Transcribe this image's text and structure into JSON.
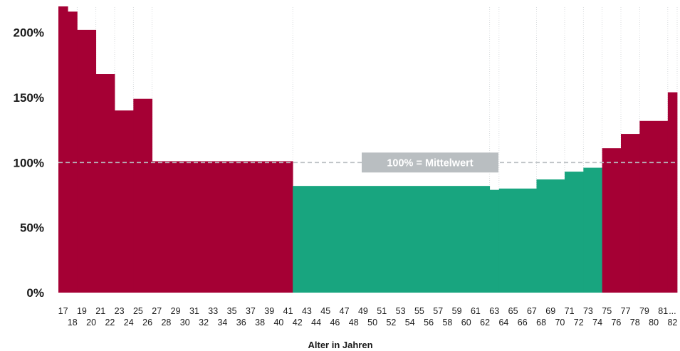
{
  "chart_data": {
    "type": "bar",
    "xlabel": "Alter in Jahren",
    "ylabel": "",
    "ylim": [
      0,
      220
    ],
    "y_ticks": [
      0,
      50,
      100,
      150,
      200
    ],
    "y_tick_labels": [
      "0%",
      "50%",
      "100%",
      "150%",
      "200%"
    ],
    "x_tick_labels_top": [
      "17",
      "19",
      "21",
      "23",
      "25",
      "27",
      "29",
      "31",
      "33",
      "35",
      "37",
      "39",
      "41",
      "43",
      "45",
      "47",
      "49",
      "51",
      "53",
      "55",
      "57",
      "59",
      "61",
      "63",
      "65",
      "67",
      "69",
      "71",
      "73",
      "75",
      "77",
      "79",
      "81",
      "..."
    ],
    "x_tick_labels_bottom": [
      "18",
      "20",
      "22",
      "24",
      "26",
      "28",
      "30",
      "32",
      "34",
      "36",
      "38",
      "40",
      "42",
      "44",
      "46",
      "48",
      "50",
      "52",
      "54",
      "56",
      "58",
      "60",
      "62",
      "64",
      "66",
      "68",
      "70",
      "72",
      "74",
      "76",
      "78",
      "80",
      "82"
    ],
    "colors": {
      "above": "#a50034",
      "below": "#18a57f",
      "reference": "#b9bec1"
    },
    "reference_line": {
      "value": 100,
      "label": "100% = Mittelwert"
    },
    "groups": [
      {
        "from": "17",
        "to": "17",
        "value": 220
      },
      {
        "from": "18",
        "to": "18",
        "value": 216
      },
      {
        "from": "19-20",
        "to": "20",
        "value": 202
      },
      {
        "from": "21",
        "to": "22",
        "value": 168
      },
      {
        "from": "23",
        "to": "24",
        "value": 140
      },
      {
        "from": "25",
        "to": "26",
        "value": 149
      },
      {
        "from": "27",
        "to": "41",
        "value": 101
      },
      {
        "from": "42",
        "to": "62",
        "value": 82
      },
      {
        "from": "63",
        "to": "63",
        "value": 79
      },
      {
        "from": "64",
        "to": "67",
        "value": 80
      },
      {
        "from": "68",
        "to": "70",
        "value": 87
      },
      {
        "from": "71",
        "to": "72",
        "value": 93
      },
      {
        "from": "73",
        "to": "74",
        "value": 96
      },
      {
        "from": "75",
        "to": "76",
        "value": 111
      },
      {
        "from": "77",
        "to": "78",
        "value": 122
      },
      {
        "from": "79",
        "to": "81",
        "value": 132
      },
      {
        "from": "82",
        "to": "...",
        "value": 154
      }
    ]
  }
}
